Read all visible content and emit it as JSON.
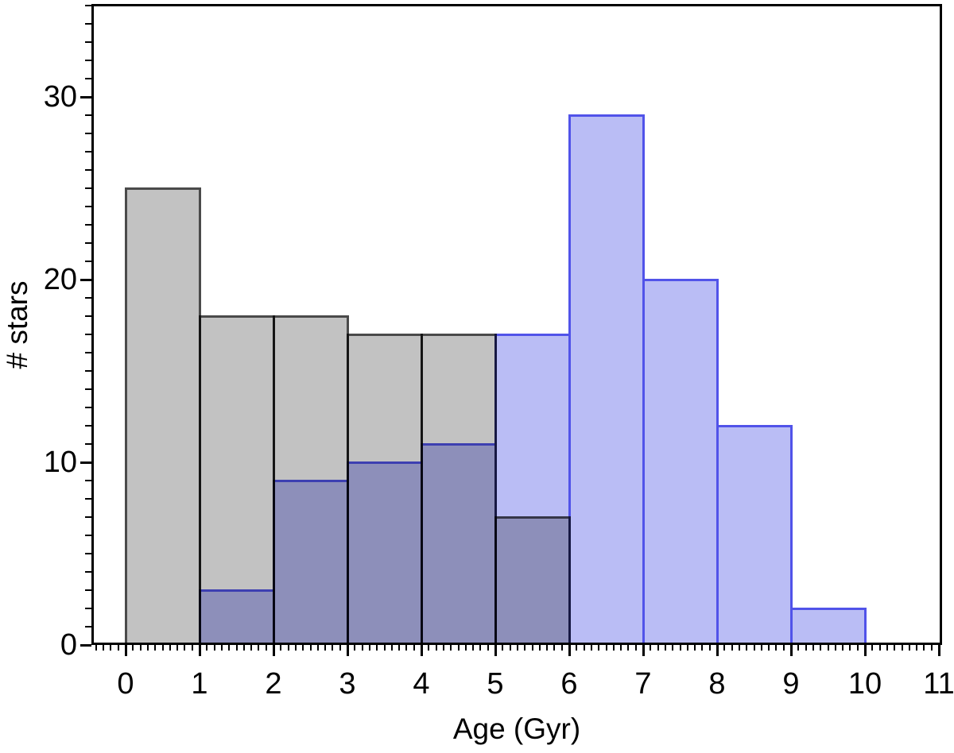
{
  "figure_title": "",
  "chart_data": {
    "type": "histogram",
    "title": "",
    "xlabel": "Age (Gyr)",
    "ylabel": "# stars",
    "xlim": [
      -0.46,
      11
    ],
    "ylim": [
      0,
      35
    ],
    "x_major_ticks": [
      0,
      1,
      2,
      3,
      4,
      5,
      6,
      7,
      8,
      9,
      10,
      11
    ],
    "x_tick_labels": [
      "0",
      "1",
      "2",
      "3",
      "4",
      "5",
      "6",
      "7",
      "8",
      "9",
      "10",
      "11"
    ],
    "x_minor_step": 0.1,
    "y_major_ticks": [
      0,
      10,
      20,
      30
    ],
    "y_tick_labels": [
      "0",
      "10",
      "20",
      "30"
    ],
    "y_minor_step": 1,
    "grid": false,
    "legend": "none",
    "series": [
      {
        "name": "blue-histogram",
        "bin_edges": [
          1,
          2,
          3,
          4,
          5,
          6,
          7,
          8,
          9,
          10
        ],
        "values": [
          3,
          9,
          10,
          11,
          17,
          29,
          20,
          12,
          2
        ],
        "apparent_fill": "#babdf5",
        "apparent_edge": "#6164eb",
        "paint_fill": "#babdf5",
        "paint_edge": "rgba(45,48,228,0.75)"
      },
      {
        "name": "gray-histogram",
        "bin_edges": [
          0,
          1,
          2,
          3,
          4,
          5,
          6
        ],
        "values": [
          25,
          18,
          18,
          17,
          17,
          7
        ],
        "apparent_fill": "#c2c2c2",
        "apparent_edge": "#616161",
        "paint_fill": "rgba(0,0,0,0.24)",
        "paint_edge": "rgba(0,0,0,0.62)"
      }
    ],
    "overlap_color": "#8e92bd",
    "axis_color": "#000000",
    "background_color": "#ffffff"
  }
}
